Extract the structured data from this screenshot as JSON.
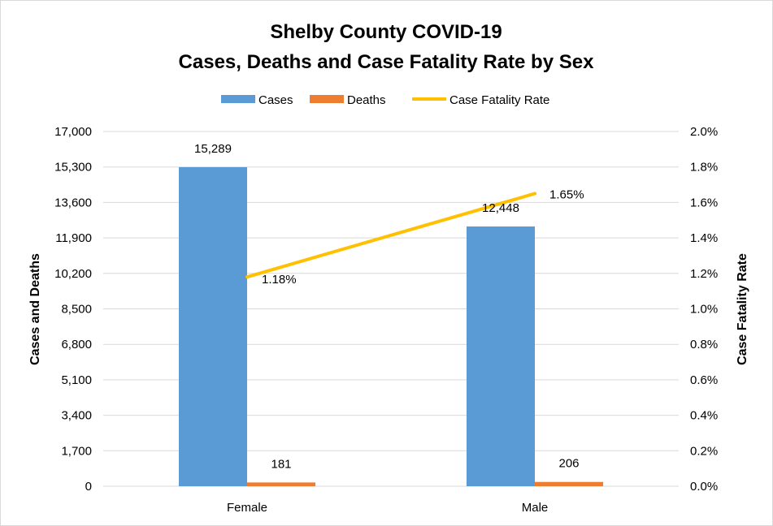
{
  "chart_data": {
    "type": "bar",
    "title_lines": [
      "Shelby County COVID-19",
      "Cases, Deaths and Case Fatality Rate by Sex"
    ],
    "categories": [
      "Female",
      "Male"
    ],
    "series": [
      {
        "name": "Cases",
        "kind": "bar",
        "axis": "left",
        "color": "#5b9bd5",
        "values": [
          15289,
          12448
        ],
        "labels": [
          "15,289",
          "12,448"
        ]
      },
      {
        "name": "Deaths",
        "kind": "bar",
        "axis": "left",
        "color": "#ed7d31",
        "values": [
          181,
          206
        ],
        "labels": [
          "181",
          "206"
        ]
      },
      {
        "name": "Case Fatality Rate",
        "kind": "line",
        "axis": "right",
        "color": "#ffc000",
        "values": [
          0.0118,
          0.0165
        ],
        "labels": [
          "1.18%",
          "1.65%"
        ]
      }
    ],
    "ylabel": "Cases and Deaths",
    "y2label": "Case Fatality Rate",
    "ylim": [
      0,
      17000
    ],
    "y2lim": [
      0,
      0.02
    ],
    "yticks": [
      "0",
      "1,700",
      "3,400",
      "5,100",
      "6,800",
      "8,500",
      "10,200",
      "11,900",
      "13,600",
      "15,300",
      "17,000"
    ],
    "y2ticks": [
      "0.0%",
      "0.2%",
      "0.4%",
      "0.6%",
      "0.8%",
      "1.0%",
      "1.2%",
      "1.4%",
      "1.6%",
      "1.8%",
      "2.0%"
    ],
    "grid": true,
    "gridline_color": "#d9d9d9",
    "legend_position": "top"
  }
}
